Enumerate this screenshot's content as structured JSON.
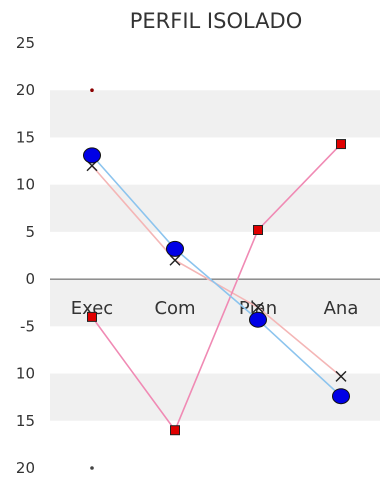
{
  "chart_data": {
    "type": "line",
    "title": "PERFIL ISOLADO",
    "categories": [
      "Exec",
      "Com",
      "Plan",
      "Ana"
    ],
    "ylim": [
      -20,
      25
    ],
    "yticks": [
      {
        "value": 25,
        "label": "25"
      },
      {
        "value": 20,
        "label": "20"
      },
      {
        "value": 15,
        "label": "15"
      },
      {
        "value": 10,
        "label": "10"
      },
      {
        "value": 5,
        "label": "5"
      },
      {
        "value": 0,
        "label": "0"
      },
      {
        "value": -5,
        "label": "-5"
      },
      {
        "value": -10,
        "label": "10"
      },
      {
        "value": -15,
        "label": "15"
      },
      {
        "value": -20,
        "label": "20"
      }
    ],
    "banding": "alternating gray/white bands every 5 units",
    "grid": false,
    "legend": "none",
    "series": [
      {
        "values": [
          12,
          2,
          -3,
          -10.3
        ],
        "color": "#f4b6b6",
        "marker": "x",
        "marker_color": "#222222"
      },
      {
        "values": [
          -4,
          -16,
          5.2,
          14.3
        ],
        "color": "#f08ab4",
        "marker": "square",
        "marker_color": "#e00000"
      },
      {
        "values": [
          13.1,
          3.2,
          -4.3,
          -12.4
        ],
        "color": "#8cc4ee",
        "marker": "circle",
        "marker_color": "#0000e6"
      }
    ],
    "extra_points": [
      {
        "category": "Exec",
        "value": 20,
        "color": "#8b0000"
      },
      {
        "category": "Exec",
        "value": -20,
        "color": "#444444"
      }
    ]
  }
}
